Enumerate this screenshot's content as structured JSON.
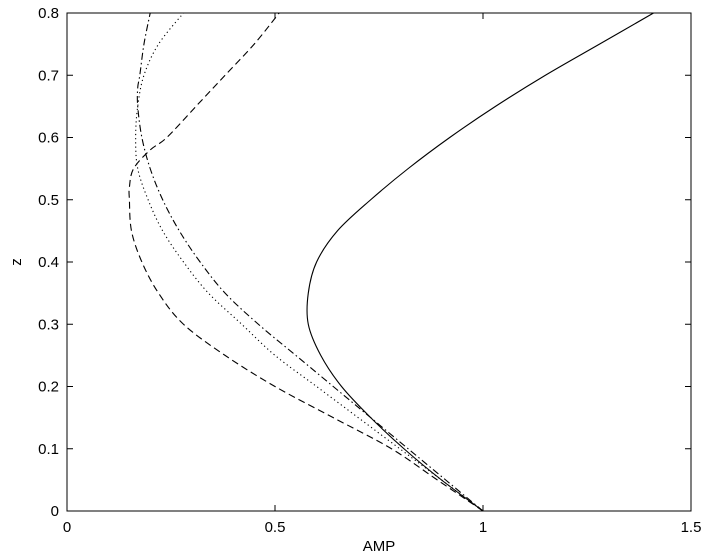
{
  "chart_data": {
    "type": "line",
    "title": "",
    "xlabel": "AMP",
    "ylabel": "z",
    "xlim": [
      0,
      1.5
    ],
    "ylim": [
      0,
      0.8
    ],
    "xticks": [
      "0",
      "0.5",
      "1",
      "1.5"
    ],
    "yticks": [
      "0",
      "0.1",
      "0.2",
      "0.3",
      "0.4",
      "0.5",
      "0.6",
      "0.7",
      "0.8"
    ],
    "grid": false,
    "legend": "none",
    "series": [
      {
        "style": "solid",
        "points": [
          [
            1.0,
            0.0
          ],
          [
            0.9,
            0.05
          ],
          [
            0.81,
            0.1
          ],
          [
            0.73,
            0.15
          ],
          [
            0.66,
            0.2
          ],
          [
            0.61,
            0.25
          ],
          [
            0.58,
            0.3
          ],
          [
            0.58,
            0.35
          ],
          [
            0.6,
            0.4
          ],
          [
            0.65,
            0.45
          ],
          [
            0.73,
            0.5
          ],
          [
            0.82,
            0.55
          ],
          [
            0.92,
            0.6
          ],
          [
            1.03,
            0.65
          ],
          [
            1.15,
            0.7
          ],
          [
            1.28,
            0.75
          ],
          [
            1.41,
            0.8
          ]
        ]
      },
      {
        "style": "dashed",
        "points": [
          [
            1.0,
            0.0
          ],
          [
            0.89,
            0.05
          ],
          [
            0.78,
            0.1
          ],
          [
            0.64,
            0.15
          ],
          [
            0.5,
            0.2
          ],
          [
            0.38,
            0.25
          ],
          [
            0.28,
            0.3
          ],
          [
            0.22,
            0.35
          ],
          [
            0.18,
            0.4
          ],
          [
            0.155,
            0.45
          ],
          [
            0.15,
            0.5
          ],
          [
            0.15,
            0.52
          ],
          [
            0.16,
            0.55
          ],
          [
            0.2,
            0.58
          ],
          [
            0.24,
            0.6
          ],
          [
            0.31,
            0.65
          ],
          [
            0.38,
            0.7
          ],
          [
            0.45,
            0.75
          ],
          [
            0.51,
            0.8
          ]
        ]
      },
      {
        "style": "dotted",
        "points": [
          [
            1.0,
            0.0
          ],
          [
            0.9,
            0.05
          ],
          [
            0.8,
            0.1
          ],
          [
            0.7,
            0.15
          ],
          [
            0.6,
            0.2
          ],
          [
            0.5,
            0.25
          ],
          [
            0.42,
            0.3
          ],
          [
            0.34,
            0.35
          ],
          [
            0.28,
            0.4
          ],
          [
            0.23,
            0.45
          ],
          [
            0.195,
            0.5
          ],
          [
            0.17,
            0.55
          ],
          [
            0.165,
            0.6
          ],
          [
            0.17,
            0.65
          ],
          [
            0.185,
            0.7
          ],
          [
            0.22,
            0.75
          ],
          [
            0.28,
            0.8
          ]
        ]
      },
      {
        "style": "dashdot",
        "points": [
          [
            1.0,
            0.0
          ],
          [
            0.91,
            0.05
          ],
          [
            0.82,
            0.1
          ],
          [
            0.73,
            0.15
          ],
          [
            0.64,
            0.2
          ],
          [
            0.55,
            0.25
          ],
          [
            0.46,
            0.3
          ],
          [
            0.38,
            0.35
          ],
          [
            0.32,
            0.4
          ],
          [
            0.27,
            0.45
          ],
          [
            0.23,
            0.5
          ],
          [
            0.2,
            0.55
          ],
          [
            0.18,
            0.6
          ],
          [
            0.17,
            0.65
          ],
          [
            0.17,
            0.68
          ],
          [
            0.175,
            0.7
          ],
          [
            0.185,
            0.75
          ],
          [
            0.2,
            0.8
          ]
        ]
      }
    ]
  }
}
